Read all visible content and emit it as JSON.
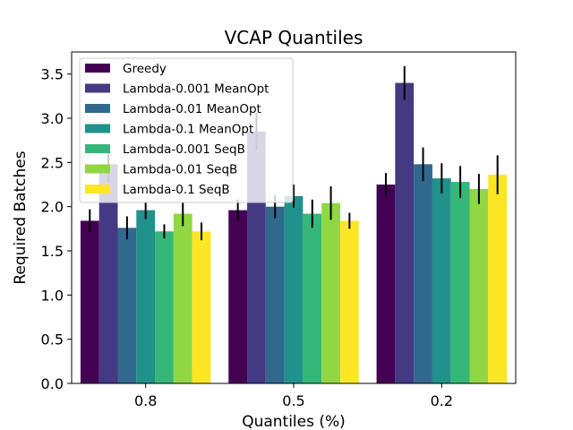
{
  "chart_data": {
    "type": "bar",
    "title": "VCAP Quantiles",
    "xlabel": "Quantiles (%)",
    "ylabel": "Required Batches",
    "categories": [
      "0.8",
      "0.5",
      "0.2"
    ],
    "ylim": [
      0,
      3.75
    ],
    "yticks": [
      "0.0",
      "0.5",
      "1.0",
      "1.5",
      "2.0",
      "2.5",
      "3.0",
      "3.5"
    ],
    "grid": false,
    "legend_position": "top-left",
    "series": [
      {
        "name": "Greedy",
        "color": "#440154",
        "values": [
          1.84,
          1.96,
          2.25
        ],
        "errors": [
          0.13,
          0.12,
          0.13
        ]
      },
      {
        "name": "Lambda-0.001 MeanOpt",
        "color": "#443983",
        "values": [
          2.48,
          2.85,
          3.4
        ],
        "errors": [
          0.21,
          0.21,
          0.19
        ]
      },
      {
        "name": "Lambda-0.01 MeanOpt",
        "color": "#31688e",
        "values": [
          1.76,
          2.0,
          2.48
        ],
        "errors": [
          0.13,
          0.13,
          0.19
        ]
      },
      {
        "name": "Lambda-0.1 MeanOpt",
        "color": "#21918c",
        "values": [
          1.96,
          2.12,
          2.32
        ],
        "errors": [
          0.1,
          0.13,
          0.17
        ]
      },
      {
        "name": "Lambda-0.001 SeqB",
        "color": "#35b779",
        "values": [
          1.72,
          1.92,
          2.28
        ],
        "errors": [
          0.08,
          0.16,
          0.18
        ]
      },
      {
        "name": "Lambda-0.01 SeqB",
        "color": "#90d743",
        "values": [
          1.92,
          2.04,
          2.2
        ],
        "errors": [
          0.14,
          0.19,
          0.17
        ]
      },
      {
        "name": "Lambda-0.1 SeqB",
        "color": "#fde725",
        "values": [
          1.72,
          1.84,
          2.36
        ],
        "errors": [
          0.1,
          0.09,
          0.22
        ]
      }
    ]
  }
}
